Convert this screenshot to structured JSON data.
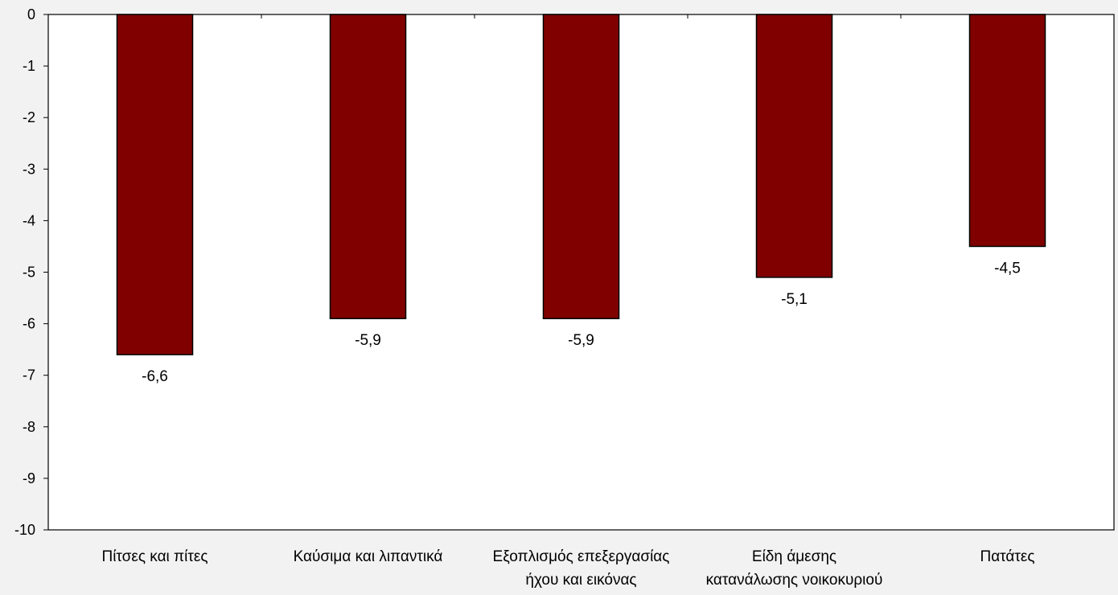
{
  "chart_data": {
    "type": "bar",
    "categories": [
      [
        "Πίτσες και πίτες"
      ],
      [
        "Καύσιμα και λιπαντικά"
      ],
      [
        "Εξοπλισμός επεξεργασίας",
        "ήχου και εικόνας"
      ],
      [
        "Είδη άμεσης",
        "κατανάλωσης νοικοκυριού"
      ],
      [
        "Πατάτες"
      ]
    ],
    "values": [
      -6.6,
      -5.9,
      -5.9,
      -5.1,
      -4.5
    ],
    "data_labels": [
      "-6,6",
      "-5,9",
      "-5,9",
      "-5,1",
      "-4,5"
    ],
    "y_ticks": [
      "0",
      "-1",
      "-2",
      "-3",
      "-4",
      "-5",
      "-6",
      "-7",
      "-8",
      "-9",
      "-10"
    ],
    "ylim": [
      -10,
      0
    ],
    "grid": false,
    "bar_color": "#800000",
    "plot_background": "#ffffff",
    "page_background": "#f2f2f2"
  }
}
